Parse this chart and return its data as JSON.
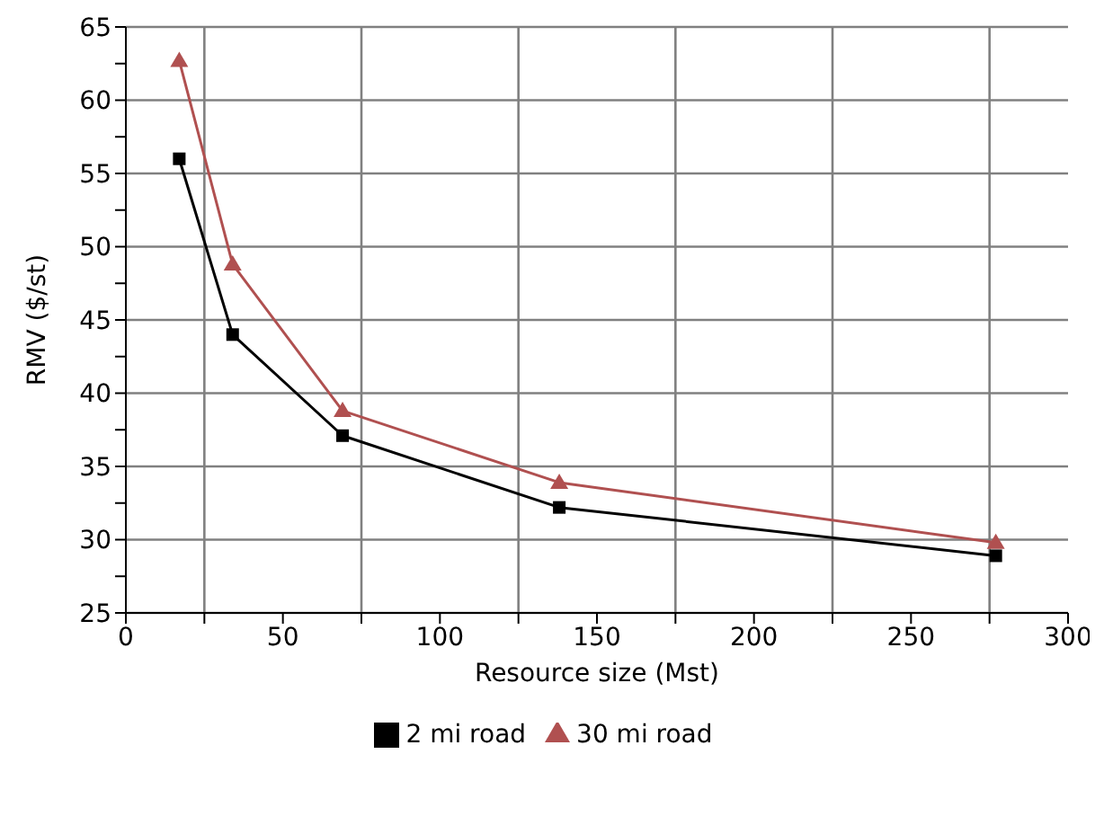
{
  "chart_data": {
    "type": "line",
    "xlabel": "Resource size (Mst)",
    "ylabel": "RMV ($/st)",
    "x": [
      17,
      34,
      69,
      138,
      277
    ],
    "series": [
      {
        "name": "2 mi road",
        "color": "#000000",
        "marker": "square",
        "values": [
          56,
          44,
          37.1,
          32.2,
          28.9
        ]
      },
      {
        "name": "30 mi road",
        "color": "#b05050",
        "marker": "triangle",
        "values": [
          62.7,
          48.8,
          38.8,
          33.9,
          29.8
        ]
      }
    ],
    "xlim": [
      0,
      300
    ],
    "xticks": [
      0,
      {
        "value": 25,
        "label": null
      },
      50,
      {
        "value": 75,
        "label": null
      },
      100,
      {
        "value": 125,
        "label": null
      },
      150,
      {
        "value": 175,
        "label": null
      },
      200,
      {
        "value": 225,
        "label": null
      },
      250,
      {
        "value": 275,
        "label": null
      },
      300
    ],
    "ylim": [
      25,
      65
    ],
    "yticks": [
      25,
      {
        "value": 27.5,
        "label": null
      },
      30,
      {
        "value": 32.5,
        "label": null
      },
      35,
      {
        "value": 37.5,
        "label": null
      },
      40,
      {
        "value": 42.5,
        "label": null
      },
      45,
      {
        "value": 47.5,
        "label": null
      },
      50,
      {
        "value": 52.5,
        "label": null
      },
      55,
      {
        "value": 57.5,
        "label": null
      },
      60,
      {
        "value": 62.5,
        "label": null
      },
      65
    ],
    "grid": true,
    "legend": "bottom",
    "line_style": "solid"
  }
}
